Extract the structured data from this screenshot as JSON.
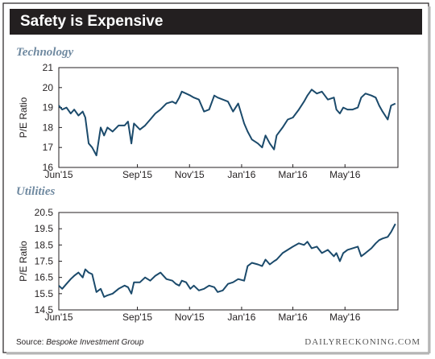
{
  "figure": {
    "title": "Safety is Expensive",
    "source_label": "Source: ",
    "source_name": "Bespoke Investment Group",
    "brand": "DAILYRECKONING.COM",
    "line_color": "#1b4a6b",
    "panel_title_color": "#6f89a0"
  },
  "chart_data": [
    {
      "type": "line",
      "title": "Technology",
      "ylabel": "P/E Ratio",
      "xlabel": "",
      "ylim": [
        16,
        21
      ],
      "yticks": [
        16,
        17,
        18,
        19,
        20,
        21
      ],
      "xticks": [
        "Jun'15",
        "Sep'15",
        "Nov'15",
        "Jan'16",
        "Mar'16",
        "May'16"
      ],
      "grid": false,
      "series": [
        {
          "x": [
            "2015-06-01",
            "2015-06-05",
            "2015-06-10",
            "2015-06-15",
            "2015-06-19",
            "2015-06-24",
            "2015-06-29",
            "2015-07-02",
            "2015-07-06",
            "2015-07-10",
            "2015-07-15",
            "2015-07-20",
            "2015-07-24",
            "2015-07-28",
            "2015-08-03",
            "2015-08-10",
            "2015-08-17",
            "2015-08-21",
            "2015-08-25",
            "2015-08-28",
            "2015-09-04",
            "2015-09-10",
            "2015-09-16",
            "2015-09-22",
            "2015-09-28",
            "2015-10-05",
            "2015-10-12",
            "2015-10-16",
            "2015-10-20",
            "2015-10-23",
            "2015-10-28",
            "2015-11-02",
            "2015-11-06",
            "2015-11-12",
            "2015-11-18",
            "2015-11-24",
            "2015-11-30",
            "2015-12-04",
            "2015-12-10",
            "2015-12-16",
            "2015-12-22",
            "2015-12-28",
            "2016-01-04",
            "2016-01-08",
            "2016-01-13",
            "2016-01-20",
            "2016-01-25",
            "2016-01-29",
            "2016-02-03",
            "2016-02-08",
            "2016-02-11",
            "2016-02-18",
            "2016-02-24",
            "2016-03-01",
            "2016-03-08",
            "2016-03-14",
            "2016-03-18",
            "2016-03-23",
            "2016-03-29",
            "2016-04-04",
            "2016-04-11",
            "2016-04-18",
            "2016-04-21",
            "2016-04-25",
            "2016-04-29",
            "2016-05-04",
            "2016-05-10",
            "2016-05-16",
            "2016-05-20",
            "2016-05-25",
            "2016-06-01",
            "2016-06-06",
            "2016-06-10",
            "2016-06-14",
            "2016-06-20",
            "2016-06-24",
            "2016-06-29"
          ],
          "values": [
            19.1,
            18.9,
            19.0,
            18.7,
            18.9,
            18.6,
            18.8,
            18.5,
            17.2,
            17.0,
            16.6,
            18.0,
            17.6,
            18.0,
            17.8,
            18.1,
            18.1,
            18.3,
            17.2,
            18.2,
            17.9,
            18.1,
            18.4,
            18.7,
            18.9,
            19.2,
            19.3,
            19.2,
            19.5,
            19.8,
            19.7,
            19.6,
            19.5,
            19.4,
            18.8,
            18.9,
            19.6,
            19.5,
            19.4,
            19.3,
            18.8,
            19.2,
            18.2,
            17.8,
            17.4,
            17.2,
            17.0,
            17.6,
            17.2,
            16.9,
            17.6,
            18.0,
            18.4,
            18.5,
            18.9,
            19.3,
            19.6,
            19.9,
            19.7,
            19.8,
            19.4,
            19.5,
            18.9,
            18.7,
            19.0,
            18.9,
            18.9,
            19.0,
            19.5,
            19.7,
            19.6,
            19.5,
            19.1,
            18.8,
            18.4,
            19.1,
            19.2
          ]
        }
      ]
    },
    {
      "type": "line",
      "title": "Utilities",
      "ylabel": "P/E Ratio",
      "xlabel": "",
      "ylim": [
        14.5,
        20.5
      ],
      "yticks": [
        14.5,
        15.5,
        16.5,
        17.5,
        18.5,
        19.5,
        20.5
      ],
      "xticks": [
        "Jun'15",
        "Sep'15",
        "Nov'15",
        "Jan'16",
        "Mar'16",
        "May'16"
      ],
      "grid": false,
      "series": [
        {
          "x": [
            "2015-06-01",
            "2015-06-05",
            "2015-06-10",
            "2015-06-15",
            "2015-06-19",
            "2015-06-24",
            "2015-06-29",
            "2015-07-02",
            "2015-07-06",
            "2015-07-10",
            "2015-07-15",
            "2015-07-20",
            "2015-07-24",
            "2015-07-28",
            "2015-08-03",
            "2015-08-10",
            "2015-08-17",
            "2015-08-21",
            "2015-08-25",
            "2015-08-28",
            "2015-09-04",
            "2015-09-10",
            "2015-09-16",
            "2015-09-22",
            "2015-09-28",
            "2015-10-05",
            "2015-10-12",
            "2015-10-16",
            "2015-10-20",
            "2015-10-23",
            "2015-10-28",
            "2015-11-02",
            "2015-11-06",
            "2015-11-12",
            "2015-11-18",
            "2015-11-24",
            "2015-11-30",
            "2015-12-04",
            "2015-12-10",
            "2015-12-16",
            "2015-12-22",
            "2015-12-28",
            "2016-01-04",
            "2016-01-08",
            "2016-01-13",
            "2016-01-20",
            "2016-01-25",
            "2016-01-29",
            "2016-02-03",
            "2016-02-08",
            "2016-02-11",
            "2016-02-18",
            "2016-02-24",
            "2016-03-01",
            "2016-03-08",
            "2016-03-14",
            "2016-03-18",
            "2016-03-23",
            "2016-03-29",
            "2016-04-04",
            "2016-04-11",
            "2016-04-18",
            "2016-04-21",
            "2016-04-25",
            "2016-04-29",
            "2016-05-04",
            "2016-05-10",
            "2016-05-16",
            "2016-05-20",
            "2016-05-25",
            "2016-06-01",
            "2016-06-06",
            "2016-06-10",
            "2016-06-14",
            "2016-06-20",
            "2016-06-24",
            "2016-06-29"
          ],
          "values": [
            16.0,
            15.8,
            16.1,
            16.4,
            16.6,
            16.8,
            16.5,
            17.0,
            16.8,
            16.7,
            15.6,
            15.8,
            15.3,
            15.4,
            15.5,
            15.8,
            16.0,
            15.9,
            15.5,
            16.2,
            16.2,
            16.5,
            16.3,
            16.6,
            16.8,
            16.4,
            16.3,
            16.1,
            16.0,
            16.3,
            16.2,
            15.8,
            16.0,
            15.7,
            15.8,
            16.0,
            15.9,
            15.6,
            15.7,
            16.1,
            16.2,
            16.4,
            16.3,
            17.2,
            17.4,
            17.3,
            17.2,
            17.6,
            17.3,
            17.5,
            17.6,
            18.0,
            18.2,
            18.4,
            18.6,
            18.5,
            18.7,
            18.3,
            18.4,
            18.0,
            18.2,
            17.8,
            18.0,
            17.5,
            18.0,
            18.2,
            18.3,
            18.4,
            17.8,
            18.0,
            18.3,
            18.6,
            18.8,
            18.9,
            19.0,
            19.3,
            19.8
          ]
        }
      ]
    }
  ]
}
